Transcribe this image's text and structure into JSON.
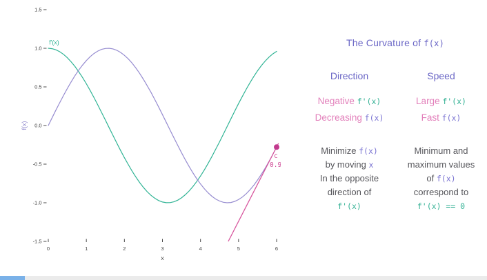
{
  "palette": {
    "head": "#6b67c6",
    "pink": "#e27fba",
    "teal": "#33b194",
    "monopurple": "#7a73d2",
    "body": "#55555a",
    "taskbar_gray": "#ebebeb",
    "taskbar_blue": "#7ab1e8"
  },
  "panel": {
    "title": [
      {
        "t": "The Curvature of ",
        "s": "head"
      },
      {
        "t": "f(x)",
        "s": "mono_head"
      }
    ],
    "direction": {
      "header": "Direction",
      "rows": [
        [
          {
            "t": "Negative ",
            "s": "pink"
          },
          {
            "t": "f'(x)",
            "s": "mono_teal"
          }
        ],
        [
          {
            "t": "Decreasing ",
            "s": "pink"
          },
          {
            "t": "f(x)",
            "s": "mono_purple"
          }
        ]
      ],
      "note_lines": [
        [
          {
            "t": "Minimize ",
            "s": "body"
          },
          {
            "t": "f(x)",
            "s": "mono_purple"
          }
        ],
        [
          {
            "t": "by moving ",
            "s": "body"
          },
          {
            "t": "x",
            "s": "mono_purple"
          }
        ],
        [
          {
            "t": "In the opposite",
            "s": "body"
          }
        ],
        [
          {
            "t": "direction of",
            "s": "body"
          }
        ],
        [
          {
            "t": "f'(x)",
            "s": "mono_teal"
          }
        ]
      ]
    },
    "speed": {
      "header": "Speed",
      "rows": [
        [
          {
            "t": "Large ",
            "s": "pink"
          },
          {
            "t": "f'(x)",
            "s": "mono_teal"
          }
        ],
        [
          {
            "t": "Fast ",
            "s": "pink"
          },
          {
            "t": "f(x)",
            "s": "mono_purple"
          }
        ]
      ],
      "note_lines": [
        [
          {
            "t": "Minimum and",
            "s": "body"
          }
        ],
        [
          {
            "t": "maximum values",
            "s": "body"
          }
        ],
        [
          {
            "t": "of ",
            "s": "body"
          },
          {
            "t": "f(x)",
            "s": "mono_purple"
          }
        ],
        [
          {
            "t": "correspond to",
            "s": "body"
          }
        ],
        [
          {
            "t": "f'(x) == 0",
            "s": "mono_teal"
          }
        ]
      ]
    }
  },
  "chart_data": {
    "type": "line",
    "title": "",
    "xlabel": "x",
    "ylabel": "f(x)",
    "ylabel_color": "#8d85cc",
    "tick_color": "#3f3f3f",
    "xlim": [
      0,
      6
    ],
    "ylim": [
      -1.5,
      1.5
    ],
    "grid": false,
    "xticks": [
      {
        "v": 0,
        "l": "0"
      },
      {
        "v": 1,
        "l": "1"
      },
      {
        "v": 2,
        "l": "2"
      },
      {
        "v": 3,
        "l": "3"
      },
      {
        "v": 4,
        "l": "4"
      },
      {
        "v": 5,
        "l": "5"
      },
      {
        "v": 6,
        "l": "6"
      }
    ],
    "yticks": [
      {
        "v": 1.5,
        "l": "1.5"
      },
      {
        "v": 1.0,
        "l": "1.0"
      },
      {
        "v": 0.5,
        "l": "0.5"
      },
      {
        "v": 0.0,
        "l": "0.0"
      },
      {
        "v": -0.5,
        "l": "-0.5"
      },
      {
        "v": -1.0,
        "l": "-1.0"
      },
      {
        "v": -1.5,
        "l": "-1.5"
      }
    ],
    "x": {
      "start": 0,
      "step": 0.1,
      "n": 61
    },
    "series": [
      {
        "name": "f'(x)",
        "color": "#2fb394",
        "label": {
          "text": "f'(x)",
          "x": 0.02,
          "y": 1.05
        },
        "values": [
          1,
          0.995,
          0.9801,
          0.9553,
          0.9211,
          0.8776,
          0.8253,
          0.7648,
          0.6967,
          0.6216,
          0.5403,
          0.4536,
          0.3624,
          0.2675,
          0.17,
          0.0707,
          -0.0292,
          -0.1288,
          -0.2272,
          -0.3233,
          -0.4161,
          -0.5048,
          -0.5885,
          -0.6663,
          -0.7374,
          -0.8011,
          -0.8569,
          -0.9041,
          -0.9422,
          -0.971,
          -0.99,
          -0.9991,
          -0.9983,
          -0.9875,
          -0.9668,
          -0.9365,
          -0.8968,
          -0.8481,
          -0.791,
          -0.7259,
          -0.6536,
          -0.5748,
          -0.4903,
          -0.4008,
          -0.3073,
          -0.2108,
          -0.1122,
          -0.0124,
          0.0875,
          0.1865,
          0.2837,
          0.378,
          0.4685,
          0.5544,
          0.6347,
          0.7087,
          0.7756,
          0.8347,
          0.8855,
          0.9275,
          0.9602
        ]
      },
      {
        "name": "f(x)",
        "color": "#968cd0",
        "values": [
          0,
          0.0998,
          0.1987,
          0.2955,
          0.3894,
          0.4794,
          0.5646,
          0.6442,
          0.7174,
          0.7833,
          0.8415,
          0.8912,
          0.932,
          0.9636,
          0.9854,
          0.9975,
          0.9996,
          0.9917,
          0.9738,
          0.9463,
          0.9093,
          0.8632,
          0.8085,
          0.7457,
          0.6755,
          0.5985,
          0.5155,
          0.4274,
          0.335,
          0.2392,
          0.1411,
          0.0416,
          -0.0584,
          -0.1577,
          -0.2555,
          -0.3508,
          -0.4425,
          -0.5298,
          -0.6119,
          -0.6878,
          -0.7568,
          -0.8183,
          -0.8716,
          -0.9162,
          -0.9516,
          -0.9775,
          -0.9937,
          -0.9999,
          -0.9962,
          -0.9825,
          -0.9589,
          -0.9258,
          -0.8835,
          -0.8323,
          -0.7728,
          -0.7055,
          -0.6313,
          -0.5507,
          -0.4646,
          -0.3739,
          -0.2794
        ]
      }
    ],
    "tangent": {
      "color": "#d7559d",
      "x": [
        4.73,
        6.05
      ],
      "y": [
        -1.5,
        -0.23
      ]
    },
    "point": {
      "x": 6,
      "y": -0.279,
      "color": "#c23a8e",
      "label_lines": [
        "c",
        "0.96"
      ],
      "label_color": "#cf4a96"
    }
  }
}
